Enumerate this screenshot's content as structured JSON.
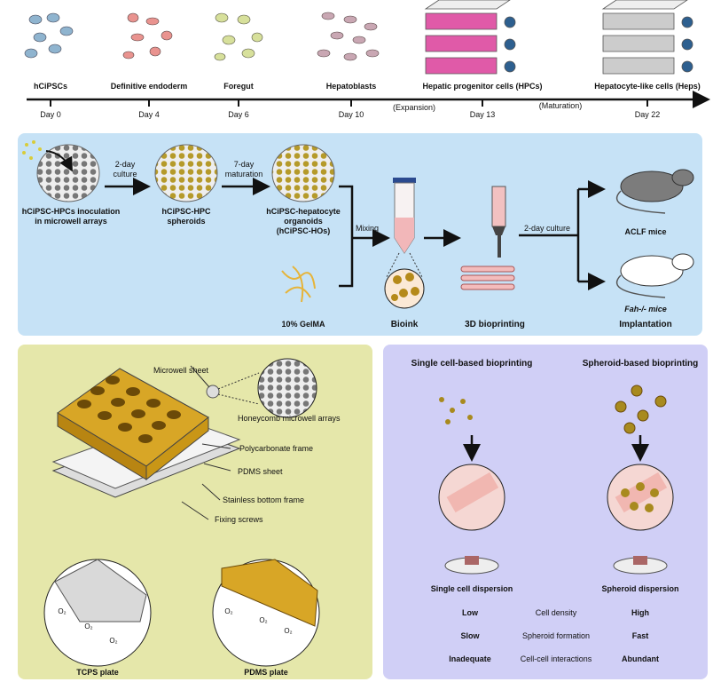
{
  "timeline": {
    "stages": [
      {
        "name": "hCiPSCs",
        "day": "Day 0"
      },
      {
        "name": "Definitive endoderm",
        "day": "Day 4"
      },
      {
        "name": "Foregut",
        "day": "Day 6"
      },
      {
        "name": "Hepatoblasts",
        "day": "Day 10"
      },
      {
        "name": "Hepatic progenitor cells (HPCs)",
        "day": "Day 13"
      },
      {
        "name": "Hepatocyte-like cells (Heps)",
        "day": "Day 22"
      }
    ],
    "expansion": "(Expansion)",
    "maturation": "(Maturation)"
  },
  "workflow": {
    "inoculation": "hCiPSC-HPCs inoculation\nin microwell arrays",
    "culture_2day": "2-day\nculture",
    "spheroids": "hCiPSC-HPC\nspheroids",
    "maturation_7day": "7-day\nmaturation",
    "organoids": "hCiPSC-hepatocyte\norganoids\n(hCiPSC-HOs)",
    "gelma": "10% GelMA",
    "mixing": "Mixing",
    "bioink": "Bioink",
    "bioprinting": "3D bioprinting",
    "culture_after": "2-day culture",
    "aclf": "ACLF mice",
    "fah": "Fah-/- mice",
    "implantation": "Implantation"
  },
  "device": {
    "microwell_sheet": "Microwell sheet",
    "honeycomb": "Honeycomb microwell arrays",
    "polycarbonate": "Polycarbonate frame",
    "pdms_sheet": "PDMS sheet",
    "stainless": "Stainless bottom frame",
    "screws": "Fixing screws",
    "o2": "O₂",
    "tcps": "TCPS plate",
    "pdms_plate": "PDMS plate"
  },
  "comparison": {
    "single_title": "Single cell-based bioprinting",
    "spheroid_title": "Spheroid-based bioprinting",
    "single_dispersion": "Single cell dispersion",
    "spheroid_dispersion": "Spheroid dispersion",
    "rows": [
      {
        "single": "Low",
        "property": "Cell density",
        "spheroid": "High"
      },
      {
        "single": "Slow",
        "property": "Spheroid formation",
        "spheroid": "Fast"
      },
      {
        "single": "Inadequate",
        "property": "Cell-cell interactions",
        "spheroid": "Abundant"
      }
    ]
  },
  "colors": {
    "workflow_panel": "#c6e2f6",
    "device_panel": "#e5e7aa",
    "comparison_panel": "#d0cff6",
    "gold": "#c9960f",
    "pink": "#f0b8bc",
    "magenta": "#e05aa8"
  }
}
